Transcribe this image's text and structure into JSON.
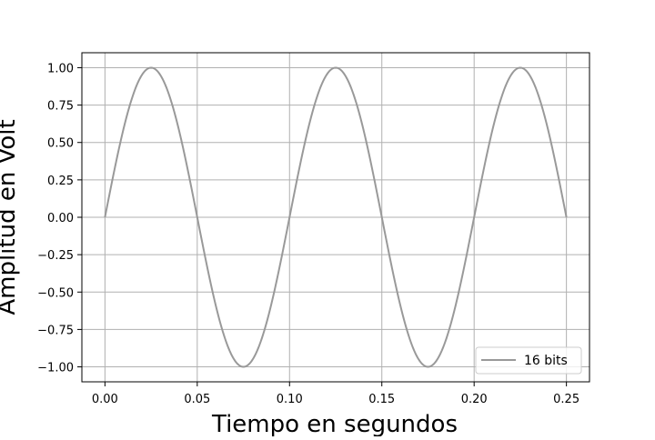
{
  "chart_data": {
    "type": "line",
    "title": "",
    "xlabel": "Tiempo en segundos",
    "ylabel": "Amplitud en Volt",
    "xlim": [
      -0.0125,
      0.2625
    ],
    "ylim": [
      -1.1,
      1.1
    ],
    "x_ticks": [
      "0.00",
      "0.05",
      "0.10",
      "0.15",
      "0.20",
      "0.25"
    ],
    "y_ticks": [
      "1.00",
      "0.75",
      "0.50",
      "0.25",
      "0.00",
      "−0.25",
      "−0.50",
      "−0.75",
      "−1.00"
    ],
    "grid": true,
    "legend_position": "bottom-right",
    "series": [
      {
        "name": "16 bits",
        "color": "#999999",
        "function": "sine",
        "frequency_hz": 10,
        "amplitude": 1.0,
        "x_start": 0.0,
        "x_end": 0.25
      }
    ]
  }
}
